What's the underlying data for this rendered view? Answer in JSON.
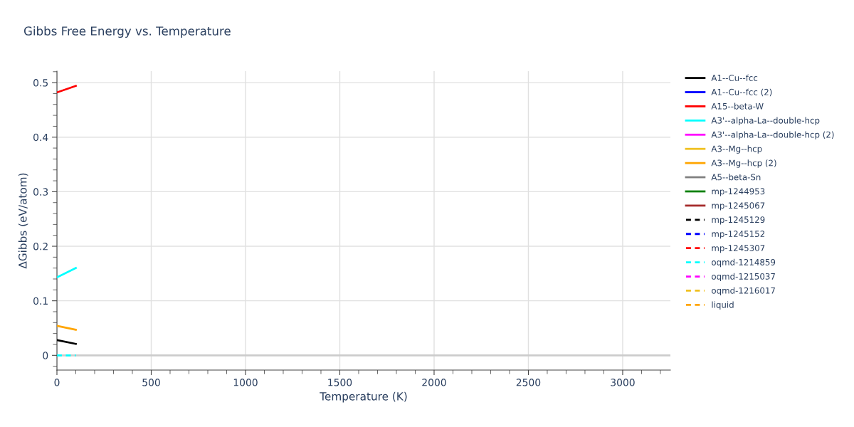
{
  "chart_data": {
    "type": "line",
    "title": "Gibbs Free Energy vs. Temperature",
    "xlabel": "Temperature (K)",
    "ylabel": "ΔGibbs (eV/atom)",
    "x": [
      0,
      100
    ],
    "series": [
      {
        "name": "A1--Cu--fcc",
        "color": "#000000",
        "values": [
          0.028,
          0.021
        ]
      },
      {
        "name": "A1--Cu--fcc (2)",
        "color": "#0000ff",
        "values": [
          null,
          null
        ]
      },
      {
        "name": "A15--beta-W",
        "color": "#ff0000",
        "values": [
          0.482,
          0.494
        ]
      },
      {
        "name": "A3'--alpha-La--double-hcp",
        "color": "#00ffff",
        "values": [
          0.143,
          0.16
        ]
      },
      {
        "name": "A3'--alpha-La--double-hcp (2)",
        "color": "#ff00ff",
        "values": [
          null,
          null
        ]
      },
      {
        "name": "A3--Mg--hcp",
        "color": "#f0c020",
        "values": [
          null,
          null
        ]
      },
      {
        "name": "A3--Mg--hcp (2)",
        "color": "#ffa500",
        "values": [
          0.054,
          0.047
        ]
      },
      {
        "name": "A5--beta-Sn",
        "color": "#808080",
        "values": [
          null,
          null
        ]
      },
      {
        "name": "mp-1244953",
        "color": "#008000",
        "values": [
          null,
          null
        ]
      },
      {
        "name": "mp-1245067",
        "color": "#a52a2a",
        "values": [
          null,
          null
        ]
      },
      {
        "name": "mp-1245129",
        "color": "#000000",
        "line_style": "dashed",
        "values": [
          null,
          null
        ]
      },
      {
        "name": "mp-1245152",
        "color": "#0000ff",
        "line_style": "dashed",
        "values": [
          null,
          null
        ]
      },
      {
        "name": "mp-1245307",
        "color": "#ff0000",
        "line_style": "dashed",
        "values": [
          null,
          null
        ]
      },
      {
        "name": "oqmd-1214859",
        "color": "#00ffff",
        "line_style": "dashed",
        "values": [
          0,
          0
        ]
      },
      {
        "name": "oqmd-1215037",
        "color": "#ff00ff",
        "line_style": "dashed",
        "values": [
          null,
          null
        ]
      },
      {
        "name": "oqmd-1216017",
        "color": "#f0c020",
        "line_style": "dashed",
        "values": [
          null,
          null
        ]
      },
      {
        "name": "liquid",
        "color": "#ffa500",
        "line_style": "dashed",
        "values": [
          null,
          null
        ]
      }
    ],
    "xlim": [
      0,
      3253
    ],
    "ylim": [
      -0.027,
      0.521
    ],
    "xticks": [
      0,
      500,
      1000,
      1500,
      2000,
      2500,
      3000
    ],
    "yticks": [
      0,
      0.1,
      0.2,
      0.3,
      0.4,
      0.5
    ],
    "ref_lines": [
      {
        "axis": "y",
        "value": 0,
        "color": "#cccccc"
      }
    ],
    "grid": true,
    "legend": "right",
    "marker": "none",
    "line_style": "solid"
  }
}
